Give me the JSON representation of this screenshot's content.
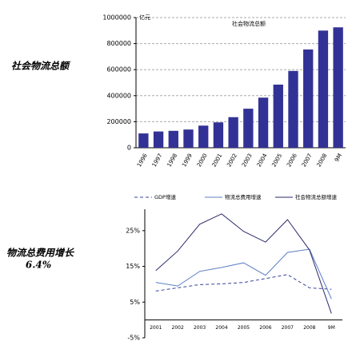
{
  "side_labels": {
    "top": "社会物流总额",
    "bottom": "物流总费用增长",
    "bottom_value": "6.4%"
  },
  "chart_data": [
    {
      "type": "bar",
      "title": "社会物流总额",
      "y_label": "亿元",
      "categories": [
        "1996",
        "1997",
        "1998",
        "1999",
        "2000",
        "2001",
        "2002",
        "2003",
        "2004",
        "2005",
        "2006",
        "2007",
        "2008",
        "9M"
      ],
      "values": [
        110000,
        125000,
        130000,
        140000,
        170000,
        195000,
        235000,
        300000,
        385000,
        485000,
        590000,
        755000,
        900000,
        925000
      ],
      "color": "#323296",
      "ylim": [
        0,
        1000000
      ],
      "yticks": [
        0,
        200000,
        400000,
        600000,
        800000,
        1000000
      ],
      "grid": true
    },
    {
      "type": "line",
      "legend": "top",
      "categories": [
        "2001",
        "2002",
        "2003",
        "2004",
        "2005",
        "2006",
        "2007",
        "2008",
        "9M"
      ],
      "series": [
        {
          "name": "GDP增速",
          "color": "#34449a",
          "dashed": true,
          "values": [
            8.1,
            9.0,
            9.9,
            10.1,
            10.5,
            11.6,
            12.7,
            9.0,
            8.6
          ]
        },
        {
          "name": "物流总费用增速",
          "color": "#5b7fc7",
          "dashed": false,
          "values": [
            10.5,
            9.5,
            13.6,
            14.7,
            16.0,
            12.5,
            18.9,
            19.8,
            5.9
          ]
        },
        {
          "name": "社会物流总额增速",
          "color": "#2a2a6a",
          "dashed": false,
          "values": [
            13.8,
            19.3,
            26.8,
            29.7,
            24.8,
            21.8,
            28.1,
            19.6,
            1.8
          ]
        }
      ],
      "ylim": [
        -5,
        31
      ],
      "yticks": [
        {
          "value": -5,
          "label": "-5%"
        },
        {
          "value": 5,
          "label": "5%"
        },
        {
          "value": 15,
          "label": "15%"
        },
        {
          "value": 25,
          "label": "25%"
        }
      ],
      "grid": false
    }
  ]
}
